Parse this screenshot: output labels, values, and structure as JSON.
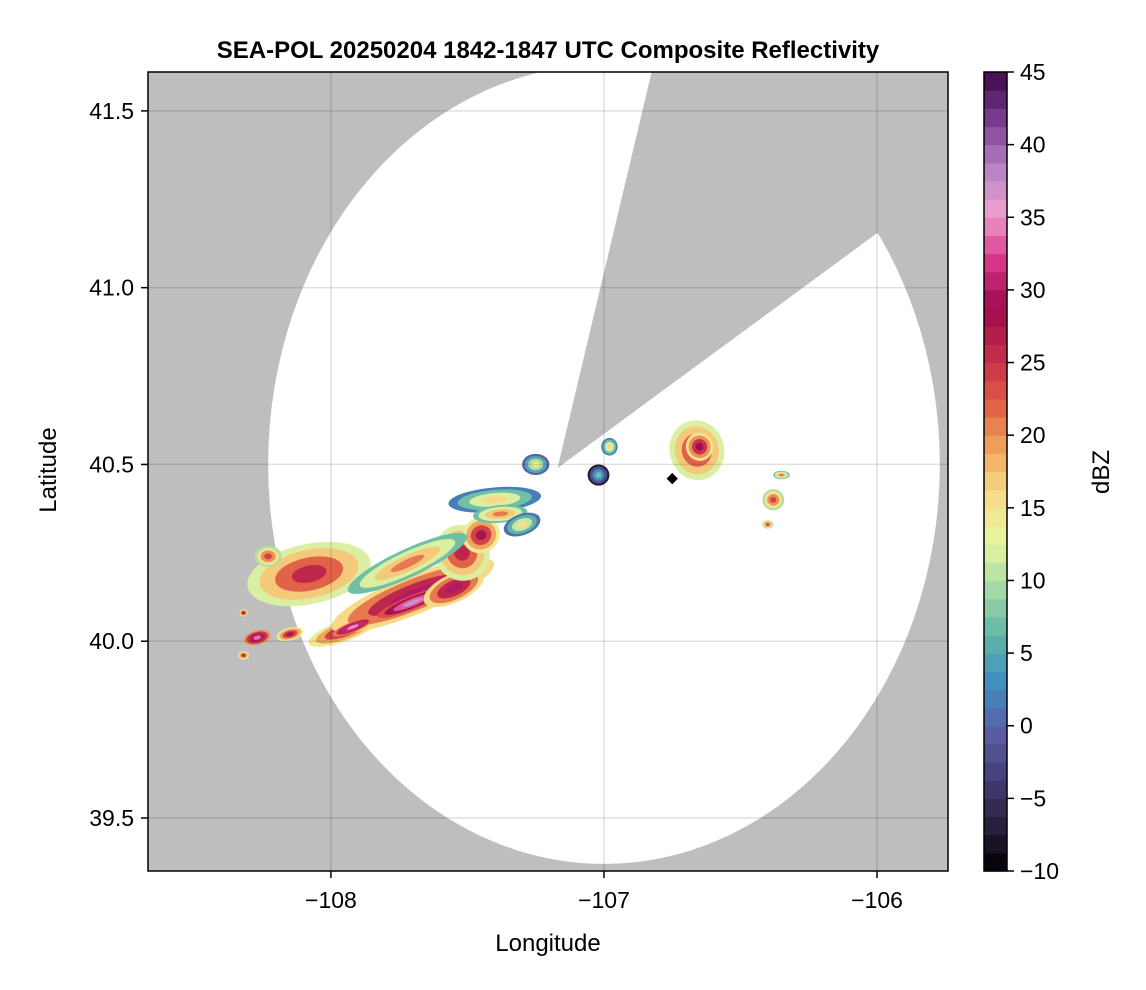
{
  "chart_data": {
    "type": "heatmap",
    "title": "SEA-POL 20250204 1842-1847 UTC Composite Reflectivity",
    "xlabel": "Longitude",
    "ylabel": "Latitude",
    "xlim": [
      -108.67,
      -105.74
    ],
    "ylim": [
      39.35,
      41.61
    ],
    "xticks": [
      -108,
      -107,
      -106
    ],
    "xtick_labels": [
      "−108",
      "−107",
      "−106"
    ],
    "yticks": [
      39.5,
      40.0,
      40.5,
      41.0,
      41.5
    ],
    "ytick_labels": [
      "39.5",
      "40.0",
      "40.5",
      "41.0",
      "41.5"
    ],
    "grid": true,
    "background_color": "#bebebe",
    "radar": {
      "center": [
        -107.0,
        40.5
      ],
      "range_deg_lat": 1.13,
      "range_deg_lon": 1.23,
      "blocked_sector_tip": [
        -107.17,
        40.49
      ],
      "blocked_sector_edge_1": [
        -106.85,
        41.53
      ],
      "blocked_sector_edge_2": [
        -106.06,
        41.12
      ]
    },
    "colorbar": {
      "label": "dBZ",
      "min": -10,
      "max": 45,
      "ticks": [
        -10,
        -5,
        0,
        5,
        10,
        15,
        20,
        25,
        30,
        35,
        40,
        45
      ],
      "tick_labels": [
        "−10",
        "−5",
        "0",
        "5",
        "10",
        "15",
        "20",
        "25",
        "30",
        "35",
        "40",
        "45"
      ],
      "colormap": "spectral-extended",
      "colors": [
        "#000000",
        "#2a1f3d",
        "#453f78",
        "#5b5fa6",
        "#3f8ebf",
        "#5fb6a8",
        "#a4d9a4",
        "#e8f5a0",
        "#f7dc8a",
        "#f0a45c",
        "#df5a45",
        "#c42a4a",
        "#9e0a4e",
        "#d8368a",
        "#eda0cf",
        "#b481c4",
        "#7a3c8e",
        "#3d0a4a"
      ]
    },
    "echo_cells": [
      {
        "lon": -108.08,
        "lat": 40.19,
        "rlon": 0.23,
        "rlat": 0.085,
        "angle": -12,
        "dbz": 22
      },
      {
        "lon": -108.23,
        "lat": 40.24,
        "rlon": 0.05,
        "rlat": 0.03,
        "angle": 0,
        "dbz": 20
      },
      {
        "lon": -108.27,
        "lat": 40.01,
        "rlon": 0.05,
        "rlat": 0.02,
        "angle": -15,
        "dbz": 30
      },
      {
        "lon": -108.15,
        "lat": 40.02,
        "rlon": 0.05,
        "rlat": 0.018,
        "angle": -15,
        "dbz": 24
      },
      {
        "lon": -108.32,
        "lat": 39.96,
        "rlon": 0.02,
        "rlat": 0.012,
        "angle": 0,
        "dbz": 22
      },
      {
        "lon": -108.32,
        "lat": 40.08,
        "rlon": 0.015,
        "rlat": 0.01,
        "angle": 0,
        "dbz": 24
      },
      {
        "lon": -107.95,
        "lat": 40.03,
        "rlon": 0.14,
        "rlat": 0.03,
        "angle": -20,
        "dbz": 24
      },
      {
        "lon": -107.7,
        "lat": 40.13,
        "rlon": 0.32,
        "rlat": 0.055,
        "angle": -22,
        "dbz": 26
      },
      {
        "lon": -107.7,
        "lat": 40.11,
        "rlon": 0.14,
        "rlat": 0.02,
        "angle": -22,
        "dbz": 33
      },
      {
        "lon": -107.92,
        "lat": 40.04,
        "rlon": 0.08,
        "rlat": 0.015,
        "angle": -22,
        "dbz": 31
      },
      {
        "lon": -107.55,
        "lat": 40.15,
        "rlon": 0.12,
        "rlat": 0.04,
        "angle": -25,
        "dbz": 26
      },
      {
        "lon": -107.52,
        "lat": 40.25,
        "rlon": 0.1,
        "rlat": 0.08,
        "angle": -35,
        "dbz": 22
      },
      {
        "lon": -107.45,
        "lat": 40.3,
        "rlon": 0.07,
        "rlat": 0.05,
        "angle": -30,
        "dbz": 24
      },
      {
        "lon": -107.72,
        "lat": 40.22,
        "rlon": 0.24,
        "rlat": 0.04,
        "angle": -25,
        "dbz": 17
      },
      {
        "lon": -107.4,
        "lat": 40.4,
        "rlon": 0.17,
        "rlat": 0.035,
        "angle": -5,
        "dbz": 12
      },
      {
        "lon": -107.38,
        "lat": 40.36,
        "rlon": 0.1,
        "rlat": 0.025,
        "angle": -5,
        "dbz": 17
      },
      {
        "lon": -107.3,
        "lat": 40.33,
        "rlon": 0.07,
        "rlat": 0.03,
        "angle": -20,
        "dbz": 11
      },
      {
        "lon": -107.25,
        "lat": 40.5,
        "rlon": 0.05,
        "rlat": 0.03,
        "angle": 0,
        "dbz": 10
      },
      {
        "lon": -107.02,
        "lat": 40.47,
        "rlon": 0.04,
        "rlat": 0.03,
        "angle": 0,
        "dbz": 3
      },
      {
        "lon": -106.98,
        "lat": 40.55,
        "rlon": 0.03,
        "rlat": 0.025,
        "angle": 0,
        "dbz": 12
      },
      {
        "lon": -106.66,
        "lat": 40.54,
        "rlon": 0.1,
        "rlat": 0.085,
        "angle": -15,
        "dbz": 22
      },
      {
        "lon": -106.65,
        "lat": 40.55,
        "rlon": 0.05,
        "rlat": 0.04,
        "angle": -15,
        "dbz": 25
      },
      {
        "lon": -106.38,
        "lat": 40.4,
        "rlon": 0.04,
        "rlat": 0.03,
        "angle": 0,
        "dbz": 20
      },
      {
        "lon": -106.4,
        "lat": 40.33,
        "rlon": 0.02,
        "rlat": 0.012,
        "angle": 0,
        "dbz": 20
      },
      {
        "lon": -106.35,
        "lat": 40.47,
        "rlon": 0.03,
        "rlat": 0.012,
        "angle": 0,
        "dbz": 17
      }
    ],
    "marker": {
      "lon": -106.75,
      "lat": 40.46,
      "color": "#000000"
    }
  }
}
